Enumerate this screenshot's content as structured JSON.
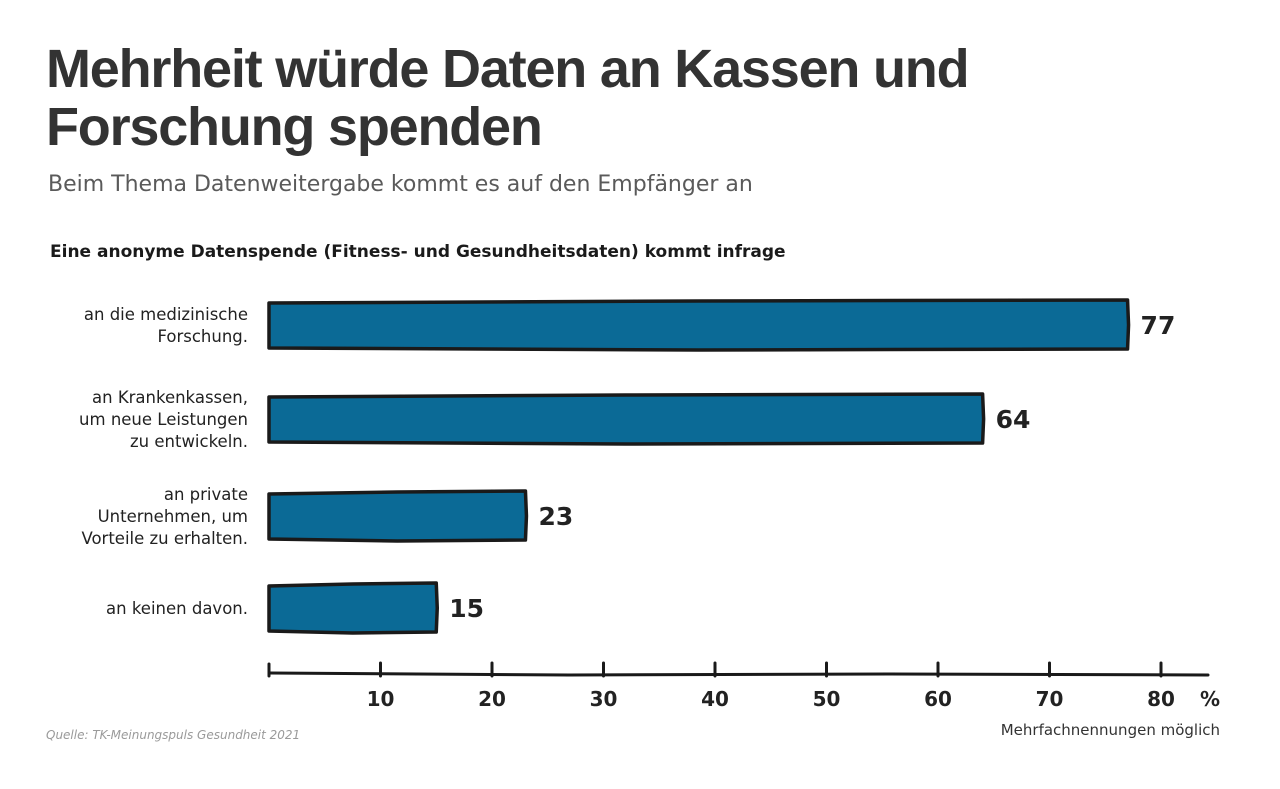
{
  "header": {
    "title": "Mehrheit würde Daten an Kassen und Forschung spenden",
    "subtitle": "Beim Thema Datenweitergabe kommt es auf den Empfänger an"
  },
  "footer": {
    "source": "Quelle: TK-Meinungspuls Gesundheit 2021",
    "note": "Mehrfachnennungen möglich"
  },
  "colors": {
    "bar_fill": "#0b6a96",
    "bar_stroke": "#1a1a1a",
    "text": "#333333"
  },
  "chart_data": {
    "type": "bar",
    "orientation": "horizontal",
    "title": "Eine anonyme Datenspende (Fitness- und Gesundheitsdaten) kommt infrage",
    "categories": [
      [
        "an die medizinische",
        "Forschung."
      ],
      [
        "an Krankenkassen,",
        "um neue Leistungen",
        "zu entwickeln."
      ],
      [
        "an private",
        "Unternehmen, um",
        "Vorteile zu erhalten."
      ],
      [
        "an keinen davon."
      ]
    ],
    "values": [
      77,
      64,
      23,
      15
    ],
    "x_ticks": [
      10,
      20,
      30,
      40,
      50,
      60,
      70,
      80
    ],
    "x_unit": "%",
    "xlim": [
      0,
      85
    ],
    "grid": false
  }
}
